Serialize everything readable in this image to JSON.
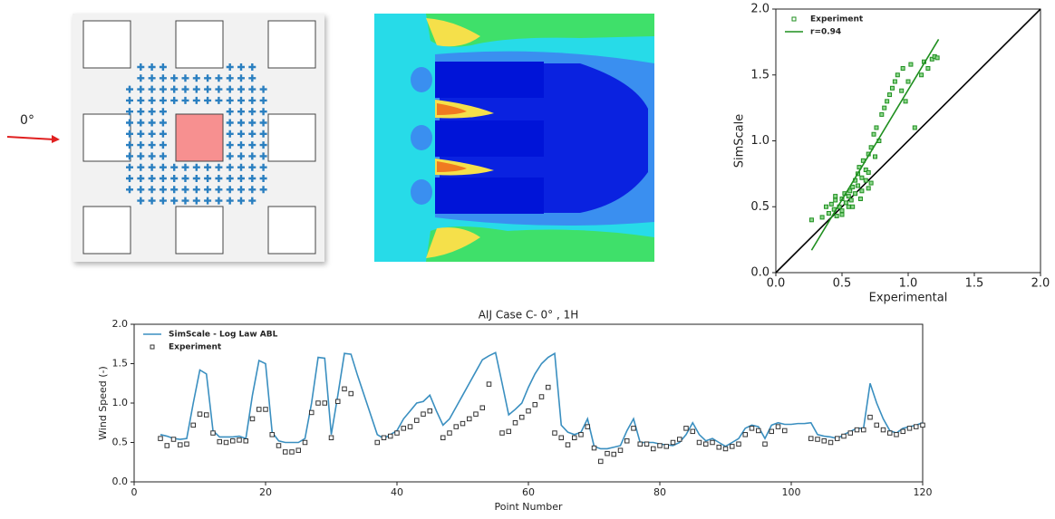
{
  "diagram": {
    "label": "0°"
  },
  "chart_data": [
    {
      "type": "scatter",
      "xlabel": "Experimental",
      "ylabel": "SimScale",
      "xlim": [
        0,
        2
      ],
      "ylim": [
        0,
        2
      ],
      "xticks": [
        {
          "value": 0,
          "label": "0.0"
        },
        {
          "value": 0.5,
          "label": "0.5"
        },
        {
          "value": 1,
          "label": "1.0"
        },
        {
          "value": 1.5,
          "label": "1.5"
        },
        {
          "value": 2,
          "label": "2.0"
        }
      ],
      "yticks": [
        {
          "value": 0,
          "label": "0.0"
        },
        {
          "value": 0.5,
          "label": "0.5"
        },
        {
          "value": 1,
          "label": "1.0"
        },
        {
          "value": 1.5,
          "label": "1.5"
        },
        {
          "value": 2,
          "label": "2.0"
        }
      ],
      "legend": "upper left",
      "series": [
        {
          "name": "Experiment",
          "color": "#1f8f1f",
          "mode": "markers",
          "x": [
            0.27,
            0.35,
            0.38,
            0.4,
            0.42,
            0.44,
            0.45,
            0.46,
            0.48,
            0.5,
            0.5,
            0.52,
            0.53,
            0.55,
            0.55,
            0.56,
            0.57,
            0.58,
            0.6,
            0.6,
            0.62,
            0.62,
            0.63,
            0.65,
            0.65,
            0.66,
            0.68,
            0.68,
            0.7,
            0.7,
            0.72,
            0.72,
            0.74,
            0.75,
            0.78,
            0.8,
            0.82,
            0.84,
            0.86,
            0.88,
            0.9,
            0.92,
            0.95,
            0.96,
            0.98,
            1.0,
            1.02,
            1.05,
            1.1,
            1.12,
            1.15,
            1.18,
            1.2,
            1.22,
            0.45,
            0.5,
            0.58,
            0.64,
            0.7,
            0.76
          ],
          "values": [
            0.4,
            0.42,
            0.5,
            0.45,
            0.52,
            0.48,
            0.55,
            0.43,
            0.5,
            0.56,
            0.47,
            0.6,
            0.53,
            0.58,
            0.5,
            0.62,
            0.55,
            0.65,
            0.7,
            0.6,
            0.75,
            0.66,
            0.8,
            0.72,
            0.62,
            0.85,
            0.78,
            0.7,
            0.9,
            0.76,
            0.95,
            0.68,
            1.05,
            0.88,
            1.0,
            1.2,
            1.25,
            1.3,
            1.35,
            1.4,
            1.45,
            1.5,
            1.38,
            1.55,
            1.3,
            1.45,
            1.58,
            1.1,
            1.5,
            1.6,
            1.55,
            1.62,
            1.64,
            1.63,
            0.58,
            0.44,
            0.5,
            0.56,
            0.64,
            1.1
          ]
        },
        {
          "name": "r=0.94",
          "color": "#1f8f1f",
          "mode": "lines",
          "x": [
            0.27,
            1.23
          ],
          "values": [
            0.17,
            1.77
          ]
        }
      ]
    },
    {
      "type": "line",
      "title": "AIJ Case C- 0° , 1H",
      "xlabel": "Point Number",
      "ylabel": "Wind Speed (-)",
      "xlim": [
        0,
        120
      ],
      "ylim": [
        0,
        2
      ],
      "xticks": [
        0,
        20,
        40,
        60,
        80,
        100,
        120
      ],
      "yticks": [
        {
          "value": 0,
          "label": "0.0"
        },
        {
          "value": 0.5,
          "label": "0.5"
        },
        {
          "value": 1,
          "label": "1.0"
        },
        {
          "value": 1.5,
          "label": "1.5"
        },
        {
          "value": 2,
          "label": "2.0"
        }
      ],
      "legend": "upper left",
      "series": [
        {
          "name": "SimScale - Log Law ABL",
          "color": "#3a8fc0",
          "mode": "lines",
          "x": [
            4,
            5,
            6,
            7,
            8,
            9,
            10,
            11,
            12,
            13,
            14,
            15,
            16,
            17,
            18,
            19,
            20,
            21,
            22,
            23,
            24,
            25,
            26,
            27,
            28,
            29,
            30,
            31,
            32,
            33,
            34,
            35,
            36,
            37,
            38,
            39,
            40,
            41,
            42,
            43,
            44,
            45,
            46,
            47,
            48,
            49,
            50,
            51,
            52,
            53,
            54,
            55,
            56,
            57,
            58,
            59,
            60,
            61,
            62,
            63,
            64,
            65,
            66,
            67,
            68,
            69,
            70,
            71,
            72,
            73,
            74,
            75,
            76,
            77,
            78,
            79,
            80,
            81,
            82,
            83,
            84,
            85,
            86,
            87,
            88,
            89,
            90,
            91,
            92,
            93,
            94,
            95,
            96,
            97,
            98,
            99,
            100,
            101,
            102,
            103,
            104,
            105,
            106,
            107,
            108,
            109,
            110,
            111,
            112,
            113,
            114,
            115,
            116,
            117,
            118,
            119,
            120
          ],
          "values": [
            0.6,
            0.58,
            0.55,
            0.54,
            0.55,
            1.0,
            1.42,
            1.37,
            0.65,
            0.57,
            0.57,
            0.57,
            0.58,
            0.55,
            1.1,
            1.54,
            1.5,
            0.63,
            0.52,
            0.5,
            0.5,
            0.5,
            0.55,
            1.0,
            1.58,
            1.57,
            0.6,
            1.1,
            1.63,
            1.62,
            1.35,
            1.1,
            0.85,
            0.6,
            0.55,
            0.6,
            0.65,
            0.8,
            0.9,
            1.0,
            1.02,
            1.1,
            0.9,
            0.72,
            0.8,
            0.95,
            1.1,
            1.25,
            1.4,
            1.55,
            1.6,
            1.64,
            1.25,
            0.85,
            0.92,
            1.0,
            1.2,
            1.37,
            1.5,
            1.58,
            1.63,
            0.72,
            0.63,
            0.6,
            0.63,
            0.8,
            0.45,
            0.42,
            0.42,
            0.44,
            0.46,
            0.65,
            0.8,
            0.5,
            0.5,
            0.5,
            0.48,
            0.47,
            0.46,
            0.5,
            0.6,
            0.75,
            0.6,
            0.52,
            0.55,
            0.5,
            0.45,
            0.5,
            0.55,
            0.68,
            0.72,
            0.7,
            0.55,
            0.72,
            0.75,
            0.73,
            0.73,
            0.74,
            0.74,
            0.75,
            0.6,
            0.58,
            0.57,
            0.55,
            0.6,
            0.64,
            0.68,
            0.68,
            1.25,
            1.0,
            0.8,
            0.65,
            0.62,
            0.68,
            0.7,
            0.72,
            0.75
          ]
        },
        {
          "name": "Experiment",
          "color": "#333333",
          "mode": "markers",
          "x": [
            4,
            5,
            6,
            7,
            8,
            9,
            10,
            11,
            12,
            13,
            14,
            15,
            16,
            17,
            18,
            19,
            20,
            21,
            22,
            23,
            24,
            25,
            26,
            27,
            28,
            29,
            30,
            31,
            32,
            33,
            37,
            38,
            39,
            40,
            41,
            42,
            43,
            44,
            45,
            47,
            48,
            49,
            50,
            51,
            52,
            53,
            54,
            56,
            57,
            58,
            59,
            60,
            61,
            62,
            63,
            64,
            65,
            66,
            67,
            68,
            69,
            70,
            71,
            72,
            73,
            74,
            75,
            76,
            77,
            78,
            79,
            80,
            81,
            82,
            83,
            84,
            85,
            86,
            87,
            88,
            89,
            90,
            91,
            92,
            93,
            94,
            95,
            96,
            97,
            98,
            99,
            103,
            104,
            105,
            106,
            107,
            108,
            109,
            110,
            111,
            112,
            113,
            114,
            115,
            116,
            117,
            118,
            119,
            120
          ],
          "values": [
            0.55,
            0.46,
            0.54,
            0.47,
            0.48,
            0.72,
            0.86,
            0.85,
            0.62,
            0.51,
            0.5,
            0.52,
            0.53,
            0.52,
            0.8,
            0.92,
            0.92,
            0.6,
            0.46,
            0.38,
            0.38,
            0.4,
            0.5,
            0.88,
            1.0,
            1.0,
            0.56,
            1.02,
            1.18,
            1.12,
            0.5,
            0.56,
            0.58,
            0.62,
            0.68,
            0.7,
            0.78,
            0.86,
            0.9,
            0.56,
            0.62,
            0.7,
            0.74,
            0.8,
            0.86,
            0.94,
            1.24,
            0.62,
            0.64,
            0.75,
            0.82,
            0.9,
            0.98,
            1.08,
            1.2,
            0.62,
            0.56,
            0.47,
            0.56,
            0.6,
            0.7,
            0.43,
            0.26,
            0.36,
            0.35,
            0.4,
            0.52,
            0.68,
            0.48,
            0.48,
            0.42,
            0.46,
            0.45,
            0.5,
            0.54,
            0.68,
            0.64,
            0.5,
            0.48,
            0.5,
            0.44,
            0.42,
            0.45,
            0.48,
            0.6,
            0.68,
            0.65,
            0.48,
            0.64,
            0.7,
            0.65,
            0.55,
            0.54,
            0.52,
            0.5,
            0.55,
            0.58,
            0.62,
            0.66,
            0.66,
            0.82,
            0.72,
            0.66,
            0.62,
            0.6,
            0.64,
            0.68,
            0.7,
            0.72
          ]
        }
      ]
    }
  ]
}
